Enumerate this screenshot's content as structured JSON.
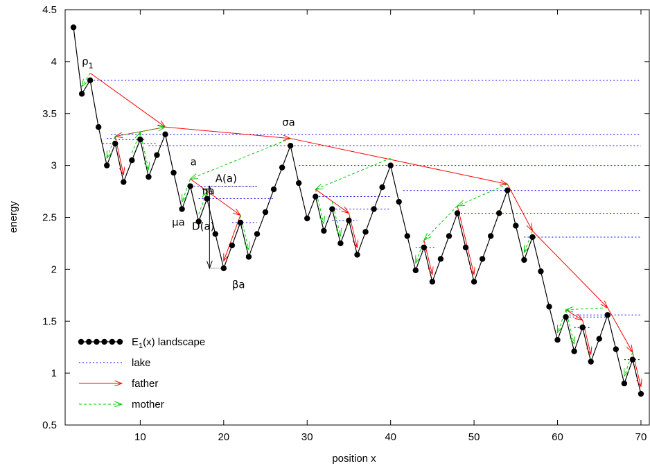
{
  "chart_data": {
    "type": "scatter",
    "xlabel": "position x",
    "ylabel": "energy",
    "xlim": [
      1,
      71
    ],
    "ylim": [
      0.5,
      4.5
    ],
    "x_ticks": [
      10,
      20,
      30,
      40,
      50,
      60,
      70
    ],
    "x_tick_labels": [
      "10",
      "20",
      "30",
      "40",
      "50",
      "60",
      "70"
    ],
    "y_ticks": [
      0.5,
      1,
      1.5,
      2,
      2.5,
      3,
      3.5,
      4,
      4.5
    ],
    "y_tick_labels": [
      "0.5",
      "1",
      "1.5",
      "2",
      "2.5",
      "3",
      "3.5",
      "4",
      "4.5"
    ],
    "grid": false,
    "legend_position": "bottom-left",
    "colors": {
      "landscape": "#000000",
      "lake": "#0000ff",
      "father": "#ff0000",
      "mother": "#00cc00"
    },
    "series": [
      {
        "name": "E_1(x) landscape",
        "style": "linespoints",
        "x": [
          2,
          3,
          4,
          5,
          6,
          7,
          8,
          9,
          10,
          11,
          12,
          13,
          14,
          15,
          16,
          17,
          18,
          19,
          20,
          21,
          22,
          23,
          24,
          25,
          26,
          27,
          28,
          29,
          30,
          31,
          32,
          33,
          34,
          35,
          36,
          37,
          38,
          39,
          40,
          41,
          42,
          43,
          44,
          45,
          46,
          47,
          48,
          49,
          50,
          51,
          52,
          53,
          54,
          55,
          56,
          57,
          58,
          59,
          60,
          61,
          62,
          63,
          64,
          65,
          66,
          67,
          68,
          69,
          70
        ],
        "y": [
          4.33,
          3.69,
          3.82,
          3.37,
          3.0,
          3.21,
          2.84,
          3.05,
          3.25,
          2.89,
          3.1,
          3.3,
          2.93,
          2.58,
          2.8,
          2.46,
          2.68,
          2.34,
          2.01,
          2.23,
          2.45,
          2.12,
          2.34,
          2.55,
          2.77,
          2.98,
          3.19,
          2.83,
          2.49,
          2.7,
          2.37,
          2.58,
          2.25,
          2.47,
          2.14,
          2.36,
          2.58,
          2.79,
          3.0,
          2.65,
          2.32,
          1.99,
          2.21,
          1.88,
          2.1,
          2.32,
          2.54,
          2.21,
          1.88,
          2.1,
          2.32,
          2.54,
          2.76,
          2.42,
          2.09,
          2.31,
          1.98,
          1.64,
          1.32,
          1.54,
          1.21,
          1.44,
          1.11,
          1.33,
          1.56,
          1.23,
          0.9,
          1.13,
          0.8
        ]
      },
      {
        "name": "lake",
        "style": "dotted-segments",
        "segments": [
          {
            "x0": 4,
            "x1": 70,
            "y": 3.82
          },
          {
            "x0": 6.5,
            "x1": 70,
            "y": 3.3
          },
          {
            "x0": 6,
            "x1": 7,
            "y": 3.26
          },
          {
            "x0": 5.5,
            "x1": 7,
            "y": 3.21
          },
          {
            "x0": 7,
            "x1": 10.5,
            "y": 3.25
          },
          {
            "x0": 10,
            "x1": 12,
            "y": 3.21
          },
          {
            "x0": 11,
            "x1": 70,
            "y": 3.19
          },
          {
            "x0": 29,
            "x1": 70,
            "y": 3.0
          },
          {
            "x0": 16,
            "x1": 24,
            "y": 2.8
          },
          {
            "x0": 17,
            "x1": 26,
            "y": 2.68
          },
          {
            "x0": 31,
            "x1": 40,
            "y": 2.7
          },
          {
            "x0": 41.5,
            "x1": 70,
            "y": 2.76
          },
          {
            "x0": 33,
            "x1": 40,
            "y": 2.58
          },
          {
            "x0": 48,
            "x1": 70,
            "y": 2.54
          },
          {
            "x0": 33,
            "x1": 36,
            "y": 2.47
          },
          {
            "x0": 21,
            "x1": 24,
            "y": 2.45
          },
          {
            "x0": 56,
            "x1": 70,
            "y": 2.31
          },
          {
            "x0": 43,
            "x1": 45.5,
            "y": 2.21
          },
          {
            "x0": 61,
            "x1": 70,
            "y": 1.56
          },
          {
            "x0": 61,
            "x1": 66,
            "y": 1.54
          },
          {
            "x0": 62,
            "x1": 64,
            "y": 1.44
          },
          {
            "x0": 68,
            "x1": 70,
            "y": 1.13
          }
        ]
      },
      {
        "name": "father",
        "style": "arrows",
        "arrows": [
          {
            "x0": 4,
            "y0": 3.89,
            "x1": 13,
            "y1": 3.37
          },
          {
            "x0": 13,
            "y0": 3.37,
            "x1": 28,
            "y1": 3.26
          },
          {
            "x0": 28,
            "y0": 3.26,
            "x1": 54,
            "y1": 2.82
          },
          {
            "x0": 54,
            "y0": 2.82,
            "x1": 57,
            "y1": 2.37
          },
          {
            "x0": 57,
            "y0": 2.37,
            "x1": 66,
            "y1": 1.63
          },
          {
            "x0": 66,
            "y0": 1.63,
            "x1": 69,
            "y1": 1.2
          },
          {
            "x0": 69,
            "y0": 1.2,
            "x1": 70,
            "y1": 0.87
          },
          {
            "x0": 13,
            "y0": 3.37,
            "x1": 7,
            "y1": 3.28
          },
          {
            "x0": 7,
            "y0": 3.28,
            "x1": 8,
            "y1": 2.91
          },
          {
            "x0": 16,
            "y0": 2.87,
            "x1": 22,
            "y1": 2.52
          },
          {
            "x0": 22,
            "y0": 2.52,
            "x1": 20,
            "y1": 2.08
          },
          {
            "x0": 31,
            "y0": 2.77,
            "x1": 35,
            "y1": 2.54
          },
          {
            "x0": 35,
            "y0": 2.54,
            "x1": 36,
            "y1": 2.21
          },
          {
            "x0": 44,
            "y0": 2.28,
            "x1": 45,
            "y1": 1.95
          },
          {
            "x0": 48,
            "y0": 2.61,
            "x1": 50,
            "y1": 1.95
          },
          {
            "x0": 61,
            "y0": 1.61,
            "x1": 63,
            "y1": 1.51
          },
          {
            "x0": 63,
            "y0": 1.51,
            "x1": 64,
            "y1": 1.18
          }
        ]
      },
      {
        "name": "mother",
        "style": "dashed-arrows",
        "arrows": [
          {
            "x0": 4,
            "y0": 3.89,
            "x1": 3,
            "y1": 3.76
          },
          {
            "x0": 7,
            "y0": 3.28,
            "x1": 13,
            "y1": 3.37
          },
          {
            "x0": 7,
            "y0": 3.28,
            "x1": 6,
            "y1": 3.07
          },
          {
            "x0": 9,
            "y0": 3.12,
            "x1": 10,
            "y1": 3.32
          },
          {
            "x0": 10,
            "y0": 3.32,
            "x1": 11,
            "y1": 2.96
          },
          {
            "x0": 28,
            "y0": 3.26,
            "x1": 16,
            "y1": 2.87
          },
          {
            "x0": 16,
            "y0": 2.87,
            "x1": 15,
            "y1": 2.65
          },
          {
            "x0": 17,
            "y0": 2.53,
            "x1": 18,
            "y1": 2.75
          },
          {
            "x0": 22,
            "y0": 2.52,
            "x1": 23,
            "y1": 2.19
          },
          {
            "x0": 40,
            "y0": 3.07,
            "x1": 31,
            "y1": 2.77
          },
          {
            "x0": 31,
            "y0": 2.77,
            "x1": 32,
            "y1": 2.44
          },
          {
            "x0": 33,
            "y0": 2.65,
            "x1": 34,
            "y1": 2.32
          },
          {
            "x0": 54,
            "y0": 2.82,
            "x1": 48,
            "y1": 2.61
          },
          {
            "x0": 48,
            "y0": 2.61,
            "x1": 44,
            "y1": 2.28
          },
          {
            "x0": 44,
            "y0": 2.28,
            "x1": 43,
            "y1": 2.06
          },
          {
            "x0": 57,
            "y0": 2.37,
            "x1": 56,
            "y1": 2.16
          },
          {
            "x0": 66,
            "y0": 1.63,
            "x1": 61,
            "y1": 1.61
          },
          {
            "x0": 61,
            "y0": 1.61,
            "x1": 60,
            "y1": 1.39
          },
          {
            "x0": 61,
            "y0": 1.61,
            "x1": 62,
            "y1": 1.28
          },
          {
            "x0": 69,
            "y0": 1.2,
            "x1": 68,
            "y1": 0.97
          }
        ]
      }
    ],
    "d_arrow": {
      "x": 18.3,
      "y0": 2.01,
      "y1": 2.8
    },
    "d_guides": [
      {
        "x0": 18.3,
        "x1": 20,
        "y": 2.01
      },
      {
        "x0": 18.3,
        "x1": 24,
        "y": 2.8
      }
    ],
    "legend": [
      {
        "label": "E_1(x) landscape",
        "style": "linespoints"
      },
      {
        "label": "lake",
        "style": "dotted"
      },
      {
        "label": "father",
        "style": "arrow"
      },
      {
        "label": "mother",
        "style": "dashed-arrow"
      }
    ],
    "annotations": [
      {
        "base": "ρ",
        "sub": "1",
        "x": 3.0,
        "y": 3.97
      },
      {
        "text": "σa",
        "x": 27.0,
        "y": 3.38
      },
      {
        "text": "a",
        "x": 16.0,
        "y": 3.0
      },
      {
        "text": "A(a)",
        "x": 19.0,
        "y": 2.84
      },
      {
        "text": "πa",
        "x": 17.4,
        "y": 2.72
      },
      {
        "text": "μa",
        "x": 13.8,
        "y": 2.42
      },
      {
        "text": "D(a)",
        "x": 16.2,
        "y": 2.38
      },
      {
        "text": "βa",
        "x": 21.0,
        "y": 1.82
      }
    ]
  }
}
